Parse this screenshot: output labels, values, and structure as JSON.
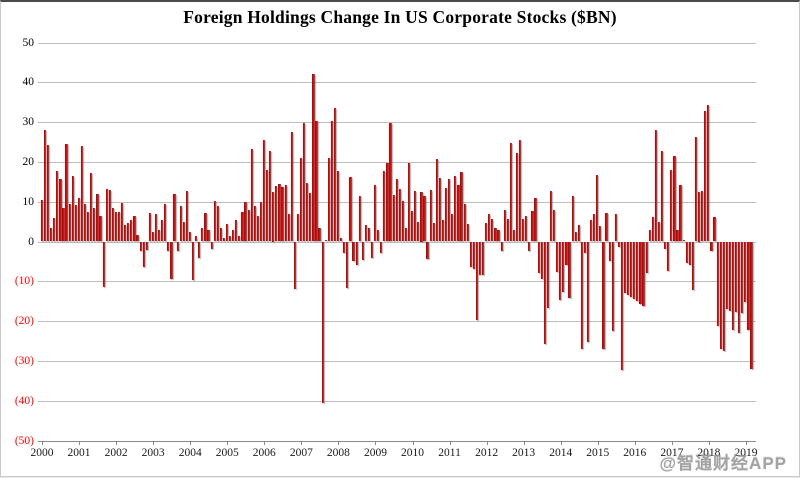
{
  "title": "Foreign Holdings Change In US Corporate Stocks ($BN)",
  "watermark": "@智通财经APP",
  "chart_data": {
    "type": "bar",
    "title": "Foreign Holdings Change In US Corporate Stocks ($BN)",
    "unit": "$BN",
    "frequency": "monthly",
    "x_start": "2000-01",
    "x_end": "2019-03",
    "ylim": [
      -50,
      50
    ],
    "grid": true,
    "legend": "none",
    "bar_color": "#c41414",
    "grid_color": "#bdbdbd",
    "negative_tick_color": "#ff0000",
    "y_ticks": [
      {
        "value": 50,
        "label": "50"
      },
      {
        "value": 40,
        "label": "40"
      },
      {
        "value": 30,
        "label": "30"
      },
      {
        "value": 20,
        "label": "20"
      },
      {
        "value": 10,
        "label": "10"
      },
      {
        "value": 0,
        "label": "0"
      },
      {
        "value": -10,
        "label": "(10)"
      },
      {
        "value": -20,
        "label": "(20)"
      },
      {
        "value": -30,
        "label": "(30)"
      },
      {
        "value": -40,
        "label": "(40)"
      },
      {
        "value": -50,
        "label": "(50)"
      }
    ],
    "x_ticks": [
      "2000",
      "2001",
      "2002",
      "2003",
      "2004",
      "2005",
      "2006",
      "2007",
      "2008",
      "2009",
      "2010",
      "2011",
      "2012",
      "2013",
      "2014",
      "2015",
      "2016",
      "2017",
      "2018",
      "2019"
    ],
    "values_by_year": {
      "2000": [
        10.4,
        28,
        24.3,
        3.3,
        6,
        17.6,
        15.8,
        8.4,
        24.6,
        9.3,
        16.4,
        9.2
      ],
      "2001": [
        11,
        24,
        9.5,
        7.4,
        17.2,
        8.3,
        12,
        6.5,
        -11.5,
        13.3,
        13,
        8.5
      ],
      "2002": [
        7.5,
        7.3,
        9.7,
        4.2,
        4.7,
        5.5,
        6.4,
        1.7,
        -2.5,
        -6.4,
        -2.1,
        7.2
      ],
      "2003": [
        2.5,
        6.8,
        3,
        5.5,
        9.3,
        -2.5,
        -9.3,
        11.9,
        -2.5,
        8.9,
        5,
        12.7
      ],
      "2004": [
        2.5,
        -9.7,
        1.3,
        -4.2,
        3.4,
        7.2,
        3,
        -2,
        10.2,
        8.8,
        3.5,
        1
      ],
      "2005": [
        4.5,
        1.5,
        3,
        5.5,
        1.5,
        7.5,
        10,
        8,
        23.3,
        9,
        6.5,
        10
      ],
      "2006": [
        25.6,
        18,
        22.8,
        12.5,
        14,
        14.5,
        13.8,
        14.2,
        6.8,
        27.5,
        -11.9,
        6.8
      ],
      "2007": [
        21,
        29.8,
        14.8,
        12.2,
        42,
        30.2,
        3.5,
        -40.7,
        0.5,
        21,
        30.3,
        33.6
      ],
      "2008": [
        17.8,
        0.8,
        -2.9,
        -11.7,
        16.2,
        -5,
        -5.9,
        11.4,
        -4.6,
        4.2,
        3.5,
        -4.2
      ],
      "2009": [
        14.3,
        2.9,
        -2.9,
        17.7,
        19.8,
        29.7,
        11.8,
        15.8,
        13.3,
        10.1,
        3.5,
        19.8
      ],
      "2010": [
        7.6,
        12.6,
        5,
        12.5,
        11.5,
        -4.5,
        13,
        4.7,
        20.8,
        16,
        5.5,
        13.5
      ],
      "2011": [
        15.8,
        6.8,
        16.5,
        14.2,
        17.5,
        9.5,
        4.5,
        -6.5,
        -7,
        -19.8,
        -8.3,
        -8.4
      ],
      "2012": [
        4.6,
        6.9,
        5.7,
        3.5,
        2.9,
        -2.4,
        8,
        5.7,
        24.7,
        2.9,
        22.3,
        25.4
      ],
      "2013": [
        5.7,
        6.3,
        -2.4,
        7.6,
        10.9,
        -8,
        -9.3,
        -25.7,
        -16.8,
        12.6,
        8,
        -7.6
      ],
      "2014": [
        -14.7,
        -12.6,
        -5.9,
        -14.3,
        11.5,
        2.5,
        4.2,
        -27,
        -3,
        -25.3,
        5.5,
        7
      ],
      "2015": [
        16.7,
        4,
        -27,
        7.2,
        -5,
        -22.5,
        6.8,
        -1.5,
        -32.3,
        -13,
        -13.5,
        -14
      ],
      "2016": [
        -14.5,
        -15,
        -15.8,
        -16.3,
        -8,
        3,
        6.2,
        28,
        4.8,
        22.8,
        -2,
        -7.5
      ],
      "2017": [
        18,
        21.5,
        2.8,
        14.2,
        0.5,
        -5.5,
        -5.8,
        -12.2,
        26.2,
        12.5,
        12.8,
        32.8
      ],
      "2018": [
        34.2,
        -2.5,
        6.2,
        -21.3,
        -27,
        -27.5,
        -17,
        -17.5,
        -22.3,
        -17.7,
        -23,
        -18
      ],
      "2019": [
        -15.2,
        -22.3,
        -32
      ]
    }
  }
}
